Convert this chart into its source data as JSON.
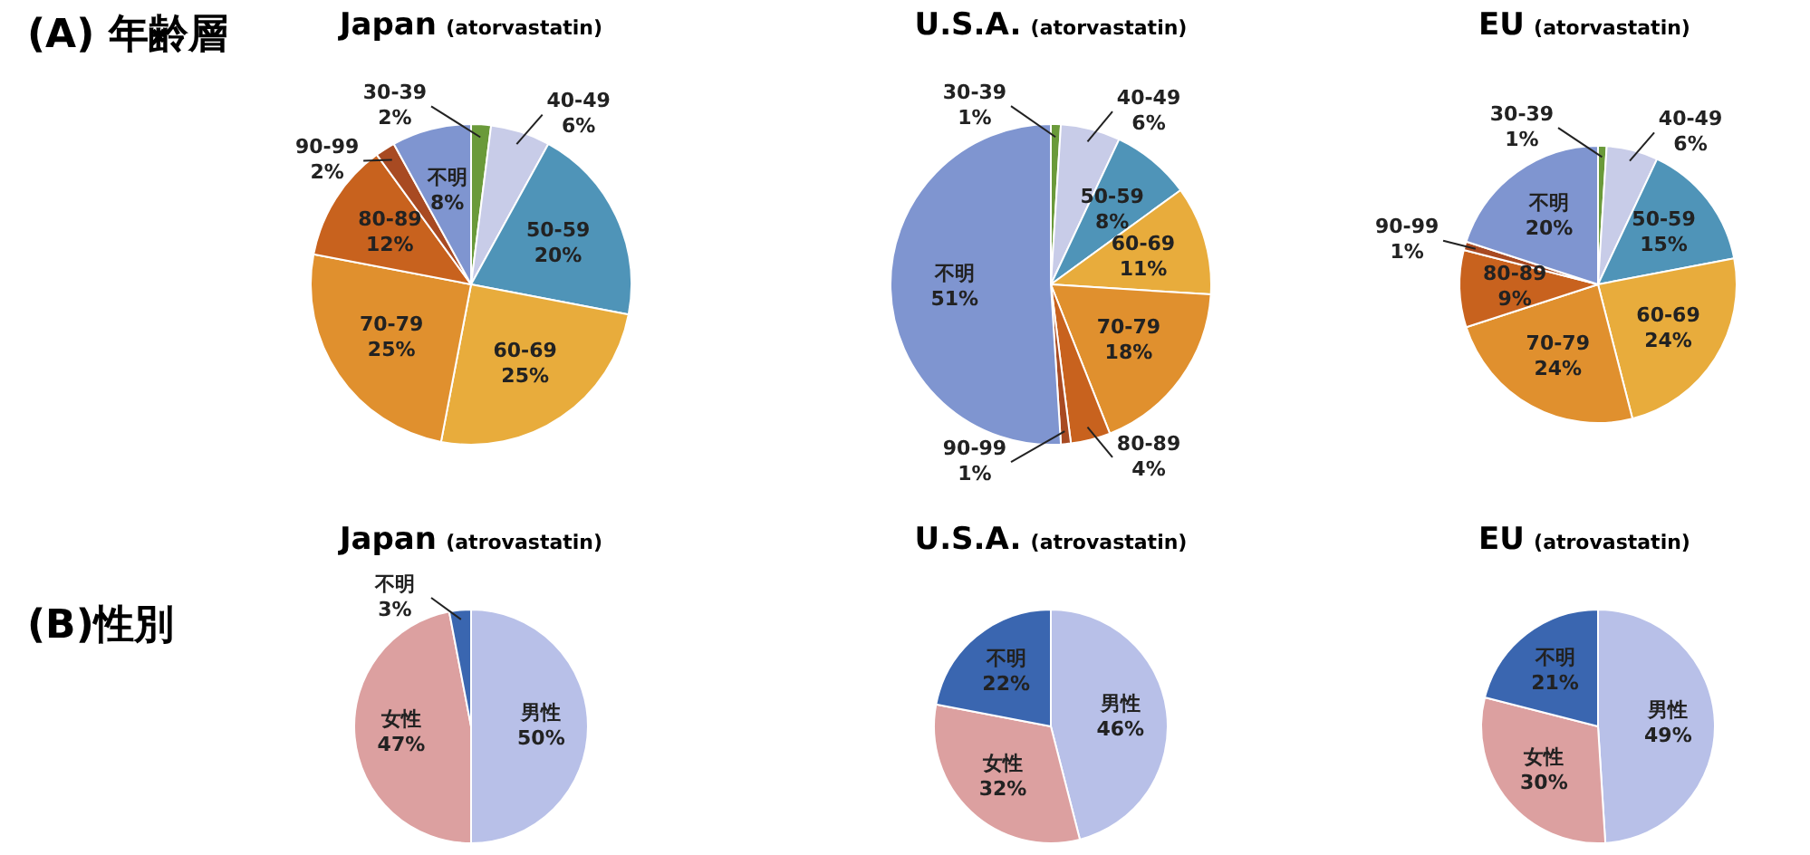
{
  "chart_data": [
    {
      "type": "pie",
      "title": "Japan",
      "subtitle": "(atorvastatin)",
      "annotations": [
        "(A) 年齢層"
      ],
      "categories": [
        "30-39",
        "40-49",
        "50-59",
        "60-69",
        "70-79",
        "80-89",
        "90-99",
        "不明"
      ],
      "values": [
        2,
        6,
        20,
        25,
        25,
        12,
        2,
        8
      ],
      "value_labels": [
        "2%",
        "6%",
        "20%",
        "25%",
        "25%",
        "12%",
        "2%",
        "8%"
      ],
      "colors": [
        "#6a9a3a",
        "#c8cce8",
        "#4f94b8",
        "#e8ac3c",
        "#e0902e",
        "#c8621e",
        "#a84a22",
        "#7f95d0"
      ]
    },
    {
      "type": "pie",
      "title": "U.S.A.",
      "subtitle": "(atorvastatin)",
      "categories": [
        "30-39",
        "40-49",
        "50-59",
        "60-69",
        "70-79",
        "80-89",
        "90-99",
        "不明"
      ],
      "values": [
        1,
        6,
        8,
        11,
        18,
        4,
        1,
        51
      ],
      "value_labels": [
        "1%",
        "6%",
        "8%",
        "11%",
        "18%",
        "4%",
        "1%",
        "51%"
      ],
      "colors": [
        "#6a9a3a",
        "#c8cce8",
        "#4f94b8",
        "#e8ac3c",
        "#e0902e",
        "#c8621e",
        "#a84a22",
        "#7f95d0"
      ]
    },
    {
      "type": "pie",
      "title": "EU",
      "subtitle": "(atorvastatin)",
      "categories": [
        "30-39",
        "40-49",
        "50-59",
        "60-69",
        "70-79",
        "80-89",
        "90-99",
        "不明"
      ],
      "values": [
        1,
        6,
        15,
        24,
        24,
        9,
        1,
        20
      ],
      "value_labels": [
        "1%",
        "6%",
        "15%",
        "24%",
        "24%",
        "9%",
        "1%",
        "20%"
      ],
      "colors": [
        "#6a9a3a",
        "#c8cce8",
        "#4f94b8",
        "#e8ac3c",
        "#e0902e",
        "#c8621e",
        "#a84a22",
        "#7f95d0"
      ]
    },
    {
      "type": "pie",
      "title": "Japan",
      "subtitle": "(atrovastatin)",
      "annotations": [
        "(B)性別"
      ],
      "categories": [
        "男性",
        "女性",
        "不明"
      ],
      "values": [
        50,
        47,
        3
      ],
      "value_labels": [
        "50%",
        "47%",
        "3%"
      ],
      "colors": [
        "#b8c0e8",
        "#dca0a0",
        "#3a66b0"
      ]
    },
    {
      "type": "pie",
      "title": "U.S.A.",
      "subtitle": "(atrovastatin)",
      "categories": [
        "男性",
        "女性",
        "不明"
      ],
      "values": [
        46,
        32,
        22
      ],
      "value_labels": [
        "46%",
        "32%",
        "22%"
      ],
      "colors": [
        "#b8c0e8",
        "#dca0a0",
        "#3a66b0"
      ]
    },
    {
      "type": "pie",
      "title": "EU",
      "subtitle": "(atrovastatin)",
      "categories": [
        "男性",
        "女性",
        "不明"
      ],
      "values": [
        49,
        30,
        21
      ],
      "value_labels": [
        "49%",
        "30%",
        "21%"
      ],
      "colors": [
        "#b8c0e8",
        "#dca0a0",
        "#3a66b0"
      ]
    }
  ]
}
